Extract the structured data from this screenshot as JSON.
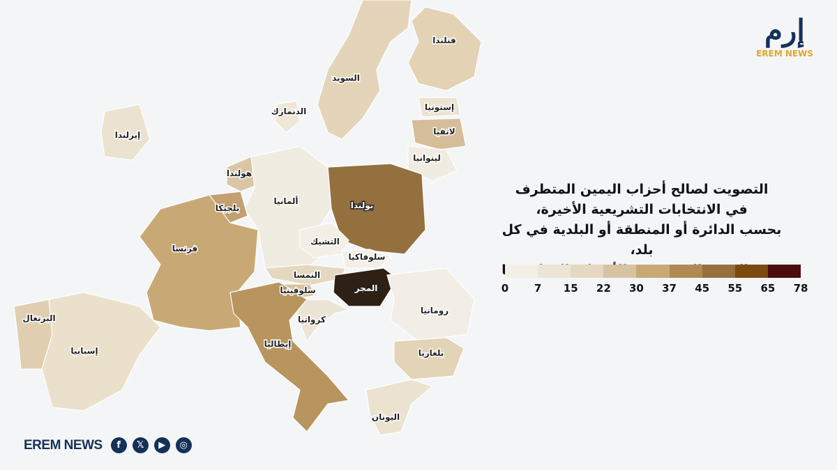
{
  "title_lines": [
    "التصويت لصالح أحزاب اليمين المتطرف",
    "في الانتخابات التشريعية الأخيرة،",
    "بحسب الدائرة أو المنطقة أو البلدية في كل بلد،",
    "وفق النسبة المئوية من الأصوات المُدلى بها"
  ],
  "legend": {
    "ticks": [
      "0",
      "7",
      "15",
      "22",
      "30",
      "37",
      "45",
      "55",
      "65",
      "78"
    ],
    "colors": [
      "#f3efe6",
      "#ece5d6",
      "#e5d8c1",
      "#d7c3a1",
      "#c8a976",
      "#af8a55",
      "#94703f",
      "#7a4a10",
      "#4b0d0d"
    ]
  },
  "countries": {
    "finland": {
      "label": "فنلندا",
      "color": "#e3d2b3"
    },
    "sweden": {
      "label": "السويد",
      "color": "#e4d5ba"
    },
    "denmark": {
      "label": "الدنمارك",
      "color": "#eee6d6"
    },
    "estonia": {
      "label": "إستونيا",
      "color": "#ece3d1"
    },
    "latvia": {
      "label": "لاتفيا",
      "color": "#d4bd98"
    },
    "lithuania": {
      "label": "ليتوانيا",
      "color": "#f1ece2"
    },
    "ireland": {
      "label": "إيرلندا",
      "color": "#ebe2d0"
    },
    "netherlands": {
      "label": "هولندا",
      "color": "#dac6a5"
    },
    "germany": {
      "label": "ألمانيا",
      "color": "#f1ece2"
    },
    "poland": {
      "label": "بولندا",
      "color": "#94703f"
    },
    "belgium": {
      "label": "بلجيكا",
      "color": "#c2a070"
    },
    "france": {
      "label": "فرنسا",
      "color": "#c8a976"
    },
    "czechia": {
      "label": "التشيك",
      "color": "#f3efe6"
    },
    "slovakia": {
      "label": "سلوفاكيا",
      "color": "#f3efe6"
    },
    "austria": {
      "label": "النمسا",
      "color": "#e5d8c1"
    },
    "slovenia": {
      "label": "سلوفينيا",
      "color": "#d7c3a1"
    },
    "hungary": {
      "label": "المجر",
      "color": "#2e2014"
    },
    "croatia": {
      "label": "كرواتيا",
      "color": "#ece5d6"
    },
    "romania": {
      "label": "رومانيا",
      "color": "#f2eee6"
    },
    "portugal": {
      "label": "البرتغال",
      "color": "#dfceb0"
    },
    "spain": {
      "label": "إسبانيا",
      "color": "#ebe0cb"
    },
    "italy": {
      "label": "إيطاليا",
      "color": "#b8945f"
    },
    "bulgaria": {
      "label": "بلغاريا",
      "color": "#e3d3b7"
    },
    "greece": {
      "label": "اليونان",
      "color": "#ebe2d0"
    }
  },
  "logo": {
    "arabic": "إرم",
    "english": "EREM NEWS"
  },
  "footer": {
    "brand": "EREM NEWS",
    "social": [
      "facebook-icon",
      "x-icon",
      "youtube-icon",
      "instagram-icon"
    ]
  }
}
